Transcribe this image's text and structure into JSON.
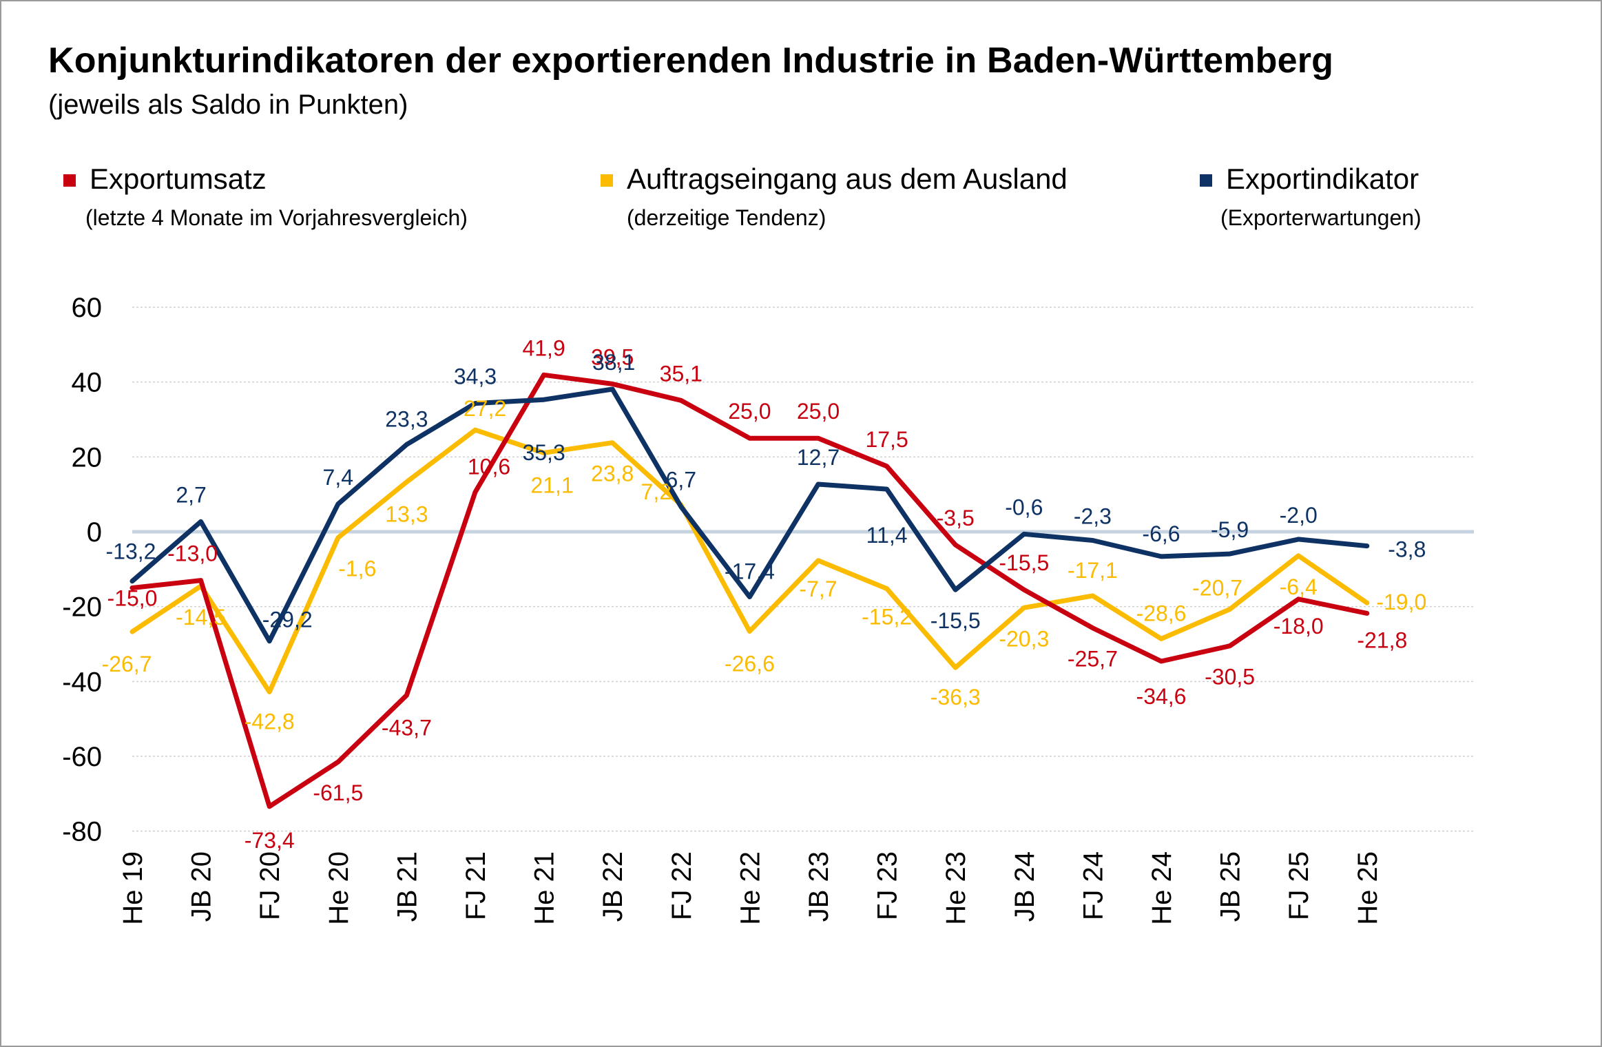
{
  "chart_data": {
    "type": "line",
    "title": "Konjunkturindikatoren der exportierenden Industrie in Baden-Württemberg",
    "subtitle": "(jeweils als Saldo in Punkten)",
    "xlabel": "",
    "ylabel": "",
    "ylim": [
      -80,
      60
    ],
    "yticks": [
      "60",
      "40",
      "20",
      "0",
      "-20",
      "-40",
      "-60",
      "-80"
    ],
    "categories": [
      "He 19",
      "JB 20",
      "FJ 20",
      "He 20",
      "JB 21",
      "FJ 21",
      "He 21",
      "JB 22",
      "FJ 22",
      "He 22",
      "JB 23",
      "FJ 23",
      "He 23",
      "JB 24",
      "FJ 24",
      "He 24",
      "JB 25",
      "FJ 25",
      "He 25"
    ],
    "series": [
      {
        "name": "Exportumsatz",
        "note": "(letzte 4 Monate  im Vorjahresvergleich)",
        "color": "#c8000f",
        "values": [
          -15.0,
          -13.0,
          -73.4,
          -61.5,
          -43.7,
          10.6,
          41.9,
          39.5,
          35.1,
          25.0,
          25.0,
          17.5,
          -3.5,
          -15.5,
          -25.7,
          -34.6,
          -30.5,
          -18.0,
          -21.8
        ],
        "labels": [
          "-15,0",
          "-13,0",
          "-73,4",
          "-61,5",
          "-43,7",
          "10,6",
          "41,9",
          "39,5",
          "35,1",
          "25,0",
          "25,0",
          "17,5",
          "-3,5",
          "-15,5",
          "-25,7",
          "-34,6",
          "-30,5",
          "-18,0",
          "-21,8"
        ]
      },
      {
        "name": "Auftragseingang aus dem Ausland",
        "note": "(derzeitige Tendenz)",
        "color": "#fbbb00",
        "values": [
          -26.7,
          -14.5,
          -42.8,
          -1.6,
          13.3,
          27.2,
          21.1,
          23.8,
          7.2,
          -26.6,
          -7.7,
          -15.2,
          -36.3,
          -20.3,
          -17.1,
          -28.6,
          -20.7,
          -6.4,
          -19.0
        ],
        "labels": [
          "-26,7",
          "-14,5",
          "-42,8",
          "-1,6",
          "13,3",
          "27,2",
          "21,1",
          "23,8",
          "7,2",
          "-26,6",
          "-7,7",
          "-15,2",
          "-36,3",
          "-20,3",
          "-17,1",
          "-28,6",
          "-20,7",
          "-6,4",
          "-19,0"
        ]
      },
      {
        "name": "Exportindikator",
        "note": "(Exporterwartungen)",
        "color": "#0e3264",
        "values": [
          -13.2,
          2.7,
          -29.2,
          7.4,
          23.3,
          34.3,
          35.3,
          38.1,
          6.7,
          -17.4,
          12.7,
          11.4,
          -15.5,
          -0.6,
          -2.3,
          -6.6,
          -5.9,
          -2.0,
          -3.8
        ],
        "labels": [
          "-13,2",
          "2,7",
          "-29,2",
          "7,4",
          "23,3",
          "34,3",
          "35,3",
          "38,1",
          "6,7",
          "-17,4",
          "12,7",
          "11,4",
          "-15,5",
          "-0,6",
          "-2,3",
          "-6,6",
          "-5,9",
          "-2,0",
          "-3,8"
        ]
      }
    ],
    "zero_line_color": "#c5d3e0",
    "grid": true,
    "legend": "top"
  }
}
